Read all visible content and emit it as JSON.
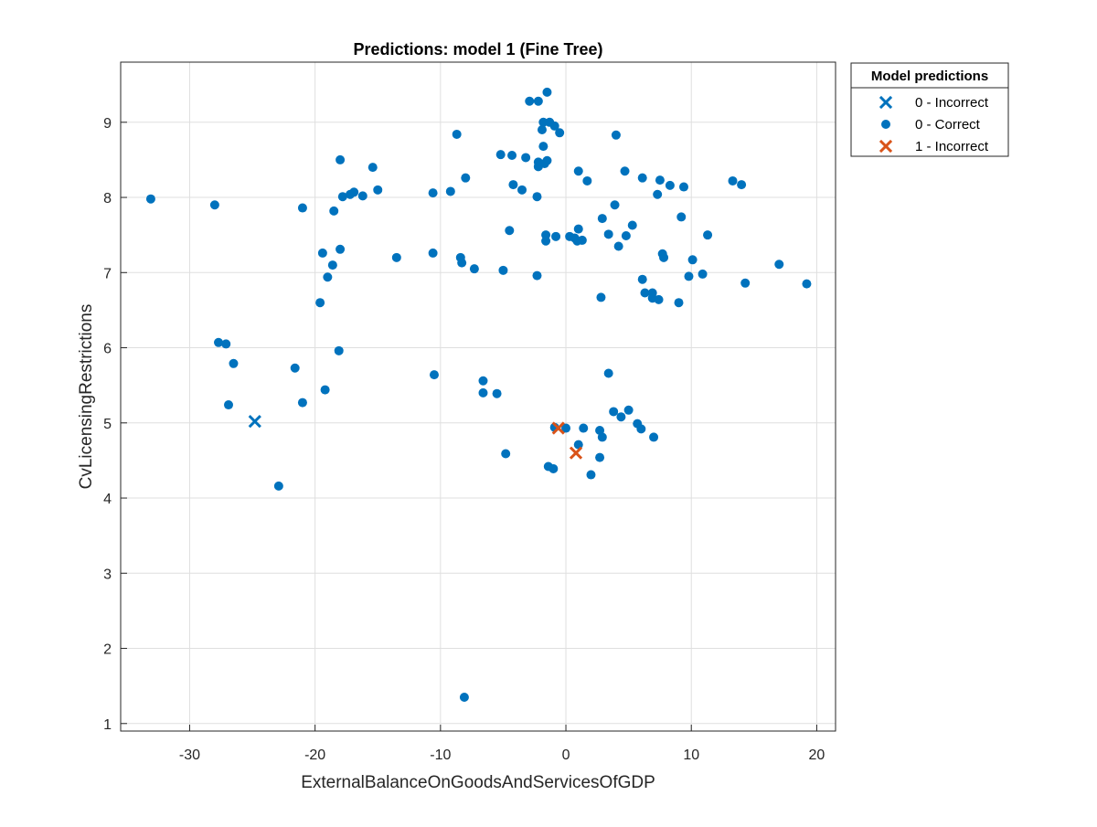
{
  "chart_data": {
    "type": "scatter",
    "title": "Predictions: model 1 (Fine Tree)",
    "xlabel": "ExternalBalanceOnGoodsAndServicesOfGDP",
    "ylabel": "CvLicensingRestrictions",
    "xlim": [
      -35.5,
      21.5
    ],
    "ylim": [
      0.9,
      9.8
    ],
    "xticks": [
      -30,
      -20,
      -10,
      0,
      10,
      20
    ],
    "yticks": [
      1,
      2,
      3,
      4,
      5,
      6,
      7,
      8,
      9
    ],
    "grid": true,
    "legend": {
      "title": "Model predictions",
      "placement": "outside-top-right"
    },
    "series": [
      {
        "name": "0 - Incorrect",
        "marker": "x",
        "color": "#0072BD",
        "points": [
          [
            -24.8,
            5.02
          ]
        ]
      },
      {
        "name": "0 - Correct",
        "marker": "o",
        "color": "#0072BD",
        "points": [
          [
            -33.1,
            7.98
          ],
          [
            -28.0,
            7.9
          ],
          [
            -21.0,
            7.86
          ],
          [
            -18.0,
            8.5
          ],
          [
            -17.8,
            8.01
          ],
          [
            -17.2,
            8.04
          ],
          [
            -16.9,
            8.07
          ],
          [
            -16.2,
            8.02
          ],
          [
            -15.4,
            8.4
          ],
          [
            -15.0,
            8.1
          ],
          [
            -18.5,
            7.82
          ],
          [
            -19.4,
            7.26
          ],
          [
            -18.0,
            7.31
          ],
          [
            -18.6,
            7.1
          ],
          [
            -19.0,
            6.94
          ],
          [
            -19.6,
            6.6
          ],
          [
            -13.5,
            7.2
          ],
          [
            -10.6,
            8.06
          ],
          [
            -9.2,
            8.08
          ],
          [
            -8.7,
            8.84
          ],
          [
            -8.0,
            8.26
          ],
          [
            -10.6,
            7.26
          ],
          [
            -8.4,
            7.2
          ],
          [
            -8.3,
            7.13
          ],
          [
            -7.3,
            7.05
          ],
          [
            -5.2,
            8.57
          ],
          [
            -4.3,
            8.56
          ],
          [
            -3.2,
            8.53
          ],
          [
            -2.9,
            9.28
          ],
          [
            -2.2,
            9.28
          ],
          [
            -1.5,
            9.4
          ],
          [
            -1.8,
            9.0
          ],
          [
            -1.3,
            9.0
          ],
          [
            -0.9,
            8.95
          ],
          [
            -2.2,
            8.47
          ],
          [
            -2.2,
            8.41
          ],
          [
            -1.7,
            8.45
          ],
          [
            -1.5,
            8.49
          ],
          [
            -1.8,
            8.68
          ],
          [
            -1.9,
            8.9
          ],
          [
            -0.5,
            8.86
          ],
          [
            -4.2,
            8.17
          ],
          [
            -3.5,
            8.1
          ],
          [
            -2.3,
            8.01
          ],
          [
            -4.5,
            7.56
          ],
          [
            -1.6,
            7.5
          ],
          [
            -1.6,
            7.42
          ],
          [
            -0.8,
            7.48
          ],
          [
            0.3,
            7.48
          ],
          [
            0.7,
            7.46
          ],
          [
            0.9,
            7.42
          ],
          [
            1.3,
            7.43
          ],
          [
            1.0,
            7.58
          ],
          [
            1.0,
            8.35
          ],
          [
            1.7,
            8.22
          ],
          [
            4.7,
            8.35
          ],
          [
            6.1,
            8.26
          ],
          [
            7.5,
            8.23
          ],
          [
            8.3,
            8.16
          ],
          [
            9.4,
            8.14
          ],
          [
            4.0,
            8.83
          ],
          [
            3.9,
            7.9
          ],
          [
            2.9,
            7.72
          ],
          [
            5.3,
            7.63
          ],
          [
            3.4,
            7.51
          ],
          [
            4.8,
            7.49
          ],
          [
            4.2,
            7.35
          ],
          [
            7.3,
            8.04
          ],
          [
            9.2,
            7.74
          ],
          [
            11.3,
            7.5
          ],
          [
            7.7,
            7.25
          ],
          [
            7.8,
            7.2
          ],
          [
            10.1,
            7.17
          ],
          [
            9.8,
            6.95
          ],
          [
            10.9,
            6.98
          ],
          [
            6.1,
            6.91
          ],
          [
            6.3,
            6.73
          ],
          [
            6.9,
            6.73
          ],
          [
            6.9,
            6.66
          ],
          [
            7.4,
            6.64
          ],
          [
            9.0,
            6.6
          ],
          [
            2.8,
            6.67
          ],
          [
            13.3,
            8.22
          ],
          [
            14.0,
            8.17
          ],
          [
            14.3,
            6.86
          ],
          [
            17.0,
            7.11
          ],
          [
            19.2,
            6.85
          ],
          [
            -5.0,
            7.03
          ],
          [
            -2.3,
            6.96
          ],
          [
            -27.7,
            6.07
          ],
          [
            -27.1,
            6.05
          ],
          [
            -26.5,
            5.79
          ],
          [
            -18.1,
            5.96
          ],
          [
            -21.6,
            5.73
          ],
          [
            -19.2,
            5.44
          ],
          [
            -21.0,
            5.27
          ],
          [
            -26.9,
            5.24
          ],
          [
            -22.9,
            4.16
          ],
          [
            -10.5,
            5.64
          ],
          [
            -6.6,
            5.56
          ],
          [
            -6.6,
            5.4
          ],
          [
            -5.5,
            5.39
          ],
          [
            3.4,
            5.66
          ],
          [
            3.8,
            5.15
          ],
          [
            4.4,
            5.08
          ],
          [
            5.0,
            5.17
          ],
          [
            5.7,
            4.99
          ],
          [
            6.0,
            4.92
          ],
          [
            7.0,
            4.81
          ],
          [
            2.9,
            4.81
          ],
          [
            2.7,
            4.9
          ],
          [
            1.4,
            4.93
          ],
          [
            -0.9,
            4.94
          ],
          [
            0.0,
            4.93
          ],
          [
            1.0,
            4.71
          ],
          [
            2.7,
            4.54
          ],
          [
            2.0,
            4.31
          ],
          [
            -1.4,
            4.42
          ],
          [
            -1.0,
            4.39
          ],
          [
            -4.8,
            4.59
          ],
          [
            -8.1,
            1.35
          ]
        ]
      },
      {
        "name": "1 - Incorrect",
        "marker": "x",
        "color": "#D95319",
        "points": [
          [
            -0.6,
            4.93
          ],
          [
            0.8,
            4.6
          ]
        ]
      }
    ]
  }
}
